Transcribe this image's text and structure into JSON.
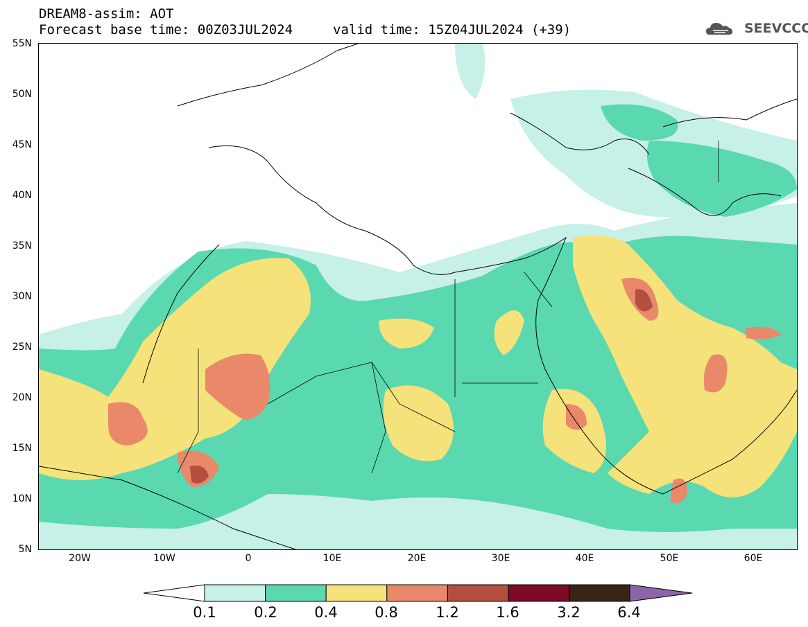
{
  "header": {
    "line1": "DREAM8-assim: AOT",
    "line2a": "Forecast base time: 00Z03JUL2024",
    "line2b": "valid time: 15Z04JUL2024 (+39)",
    "logo_text": "SEEVCCC",
    "logo_icon": "cloud-icon"
  },
  "map": {
    "lat_labels": [
      "55N",
      "50N",
      "45N",
      "40N",
      "35N",
      "30N",
      "25N",
      "20N",
      "15N",
      "10N",
      "5N"
    ],
    "lon_labels": [
      "20W",
      "10W",
      "0",
      "10E",
      "20E",
      "30E",
      "40E",
      "50E",
      "60E"
    ],
    "lat_range": [
      5,
      55
    ],
    "lon_range": [
      -25,
      65
    ]
  },
  "colorbar": {
    "levels": [
      "0.1",
      "0.2",
      "0.4",
      "0.8",
      "1.2",
      "1.6",
      "3.2",
      "6.4"
    ],
    "colors": [
      "#c6f0e8",
      "#5ad8b0",
      "#f5e27a",
      "#e9896a",
      "#b24f3f",
      "#7a0a25",
      "#3a2414",
      "#8a66a8"
    ],
    "under_color": "#ffffff",
    "over_color": "#8a66a8"
  }
}
